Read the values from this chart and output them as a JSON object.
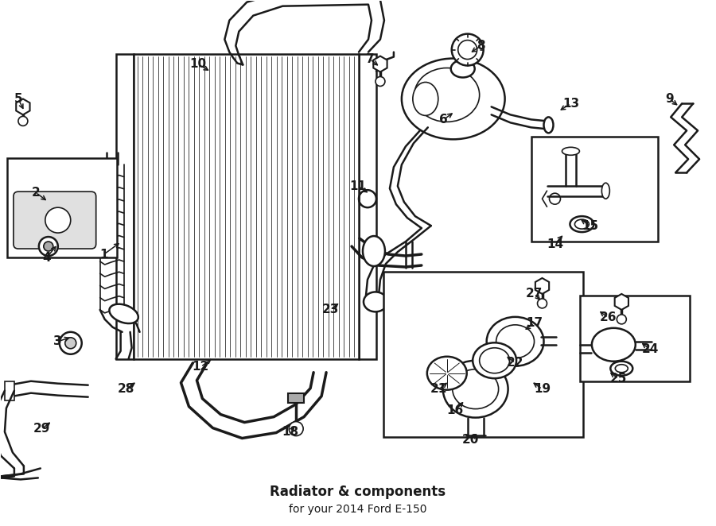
{
  "title": "Radiator & components",
  "subtitle": "for your 2014 Ford E-150",
  "bg_color": "#ffffff",
  "line_color": "#1a1a1a",
  "font_size_labels": 11,
  "fig_width": 9.0,
  "fig_height": 6.62,
  "dpi": 100,
  "label_arrows": {
    "1": {
      "lpos": [
        1.3,
        3.42
      ],
      "tpos": [
        1.52,
        3.58
      ]
    },
    "2": {
      "lpos": [
        0.44,
        4.2
      ],
      "tpos": [
        0.6,
        4.08
      ]
    },
    "3": {
      "lpos": [
        0.72,
        2.32
      ],
      "tpos": [
        0.9,
        2.38
      ]
    },
    "4": {
      "lpos": [
        0.58,
        3.38
      ],
      "tpos": [
        0.72,
        3.55
      ]
    },
    "5": {
      "lpos": [
        0.22,
        5.38
      ],
      "tpos": [
        0.3,
        5.22
      ]
    },
    "6": {
      "lpos": [
        5.58,
        5.12
      ],
      "tpos": [
        5.72,
        5.22
      ]
    },
    "7": {
      "lpos": [
        4.65,
        5.88
      ],
      "tpos": [
        4.78,
        5.78
      ]
    },
    "8": {
      "lpos": [
        6.05,
        6.05
      ],
      "tpos": [
        5.9,
        5.95
      ]
    },
    "9": {
      "lpos": [
        8.42,
        5.38
      ],
      "tpos": [
        8.55,
        5.28
      ]
    },
    "10": {
      "lpos": [
        2.48,
        5.82
      ],
      "tpos": [
        2.65,
        5.72
      ]
    },
    "11": {
      "lpos": [
        4.5,
        4.28
      ],
      "tpos": [
        4.65,
        4.18
      ]
    },
    "12": {
      "lpos": [
        2.52,
        2.0
      ],
      "tpos": [
        2.68,
        2.12
      ]
    },
    "13": {
      "lpos": [
        7.18,
        5.32
      ],
      "tpos": [
        7.02,
        5.22
      ]
    },
    "14": {
      "lpos": [
        6.98,
        3.55
      ],
      "tpos": [
        7.1,
        3.68
      ]
    },
    "15": {
      "lpos": [
        7.42,
        3.78
      ],
      "tpos": [
        7.28,
        3.88
      ]
    },
    "16": {
      "lpos": [
        5.72,
        1.45
      ],
      "tpos": [
        5.85,
        1.58
      ]
    },
    "17": {
      "lpos": [
        6.72,
        2.55
      ],
      "tpos": [
        6.58,
        2.45
      ]
    },
    "18": {
      "lpos": [
        3.65,
        1.18
      ],
      "tpos": [
        3.72,
        1.28
      ]
    },
    "19": {
      "lpos": [
        6.82,
        1.72
      ],
      "tpos": [
        6.68,
        1.82
      ]
    },
    "20": {
      "lpos": [
        5.92,
        1.08
      ],
      "tpos": [
        6.02,
        1.18
      ]
    },
    "21": {
      "lpos": [
        5.52,
        1.72
      ],
      "tpos": [
        5.65,
        1.82
      ]
    },
    "22": {
      "lpos": [
        6.48,
        2.05
      ],
      "tpos": [
        6.35,
        2.15
      ]
    },
    "23": {
      "lpos": [
        4.15,
        2.72
      ],
      "tpos": [
        4.28,
        2.82
      ]
    },
    "24": {
      "lpos": [
        8.18,
        2.22
      ],
      "tpos": [
        8.05,
        2.32
      ]
    },
    "25": {
      "lpos": [
        7.78,
        1.85
      ],
      "tpos": [
        7.65,
        1.95
      ]
    },
    "26": {
      "lpos": [
        7.65,
        2.62
      ],
      "tpos": [
        7.52,
        2.72
      ]
    },
    "27": {
      "lpos": [
        6.72,
        2.92
      ],
      "tpos": [
        6.82,
        2.82
      ]
    },
    "28": {
      "lpos": [
        1.58,
        1.72
      ],
      "tpos": [
        1.72,
        1.82
      ]
    },
    "29": {
      "lpos": [
        0.52,
        1.22
      ],
      "tpos": [
        0.65,
        1.32
      ]
    }
  }
}
